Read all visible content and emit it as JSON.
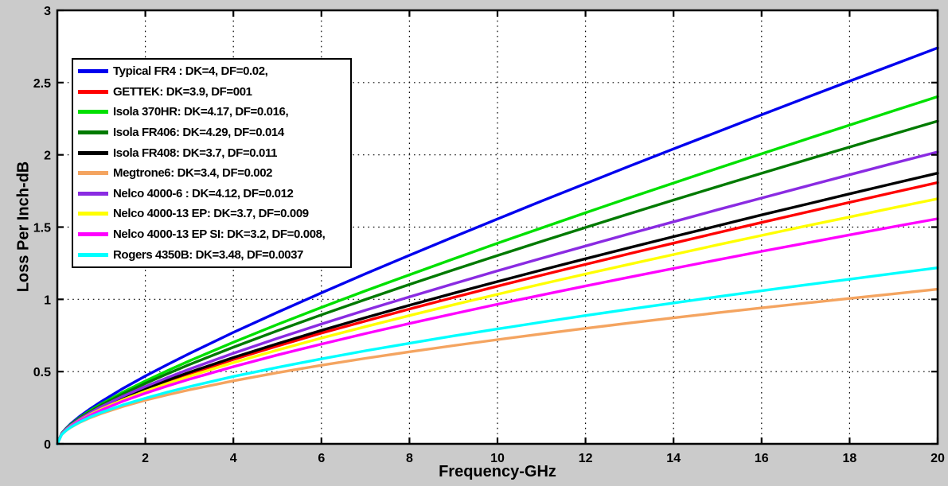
{
  "figure": {
    "background_color": "#CBCBCB",
    "plot_background_color": "#FFFFFF",
    "grid_style": "dotted",
    "axis_color": "#000000"
  },
  "chart_data": {
    "type": "line",
    "title": "",
    "xlabel": "Frequency-GHz",
    "ylabel": "Loss Per Inch-dB",
    "xlim": [
      0,
      20
    ],
    "ylim": [
      0,
      3
    ],
    "grid": "on",
    "legend_position": "top-left",
    "xticks": {
      "values": [
        2,
        4,
        6,
        8,
        10,
        12,
        14,
        16,
        18,
        20
      ],
      "labels": [
        "2",
        "4",
        "6",
        "8",
        "10",
        "12",
        "14",
        "16",
        "18",
        "20"
      ]
    },
    "yticks": {
      "values": [
        0,
        0.5,
        1,
        1.5,
        2,
        2.5,
        3
      ],
      "labels": [
        "0",
        "0.5",
        "1",
        "1.5",
        "2",
        "2.5",
        "3"
      ]
    },
    "x": [
      0,
      0.1,
      0.2,
      0.3,
      0.5,
      0.75,
      1,
      1.5,
      2,
      2.5,
      3,
      4,
      5,
      6,
      7,
      8,
      9,
      10,
      11,
      12,
      13,
      14,
      15,
      16,
      17,
      18,
      19,
      20
    ],
    "series": [
      {
        "name": "Typical FR4",
        "label": "Typical FR4 : DK=4, DF=0.02,",
        "color": "#0000EE",
        "values": [
          0,
          0.073,
          0.108,
          0.138,
          0.188,
          0.243,
          0.293,
          0.385,
          0.469,
          0.548,
          0.625,
          0.771,
          0.91,
          1.045,
          1.177,
          1.305,
          1.432,
          1.556,
          1.68,
          1.801,
          1.922,
          2.041,
          2.159,
          2.277,
          2.394,
          2.51,
          2.625,
          2.74
        ]
      },
      {
        "name": "GETTEK",
        "label": "GETTEK: DK=3.9, DF=001",
        "color": "#FF0000",
        "values": [
          0,
          0.068,
          0.099,
          0.124,
          0.165,
          0.208,
          0.247,
          0.315,
          0.375,
          0.432,
          0.485,
          0.584,
          0.677,
          0.766,
          0.85,
          0.933,
          1.013,
          1.091,
          1.167,
          1.242,
          1.316,
          1.389,
          1.461,
          1.532,
          1.602,
          1.671,
          1.74,
          1.808
        ]
      },
      {
        "name": "Isola 370HR",
        "label": "Isola 370HR: DK=4.17, DF=0.016,",
        "color": "#00E000",
        "values": [
          0,
          0.071,
          0.105,
          0.133,
          0.18,
          0.231,
          0.276,
          0.359,
          0.435,
          0.506,
          0.574,
          0.703,
          0.826,
          0.944,
          1.059,
          1.17,
          1.28,
          1.388,
          1.494,
          1.599,
          1.703,
          1.805,
          1.907,
          2.007,
          2.107,
          2.206,
          2.305,
          2.403
        ]
      },
      {
        "name": "Isola FR406",
        "label": "Isola FR406: DK=4.29, DF=0.014",
        "color": "#007A00",
        "values": [
          0,
          0.07,
          0.103,
          0.13,
          0.176,
          0.224,
          0.268,
          0.347,
          0.418,
          0.485,
          0.549,
          0.669,
          0.783,
          0.893,
          0.999,
          1.103,
          1.204,
          1.303,
          1.401,
          1.497,
          1.593,
          1.687,
          1.78,
          1.872,
          1.964,
          2.054,
          2.144,
          2.234
        ]
      },
      {
        "name": "Isola FR408",
        "label": "Isola FR408: DK=3.7, DF=0.011",
        "color": "#000000",
        "values": [
          0,
          0.068,
          0.1,
          0.125,
          0.167,
          0.211,
          0.25,
          0.32,
          0.382,
          0.44,
          0.495,
          0.597,
          0.693,
          0.785,
          0.873,
          0.959,
          1.042,
          1.123,
          1.203,
          1.281,
          1.358,
          1.434,
          1.509,
          1.584,
          1.657,
          1.73,
          1.802,
          1.873
        ]
      },
      {
        "name": "Megtrone6",
        "label": "Megtrone6: DK=3.4, DF=0.002",
        "color": "#F4A460",
        "values": [
          0,
          0.064,
          0.092,
          0.113,
          0.147,
          0.181,
          0.21,
          0.259,
          0.302,
          0.339,
          0.374,
          0.436,
          0.492,
          0.544,
          0.592,
          0.637,
          0.68,
          0.721,
          0.761,
          0.799,
          0.836,
          0.872,
          0.907,
          0.941,
          0.974,
          1.006,
          1.038,
          1.07
        ]
      },
      {
        "name": "Nelco 4000-6",
        "label": "Nelco 4000-6 : DK=4.12, DF=0.012",
        "color": "#8A2BE2",
        "values": [
          0,
          0.069,
          0.101,
          0.127,
          0.17,
          0.216,
          0.257,
          0.331,
          0.397,
          0.458,
          0.517,
          0.627,
          0.73,
          0.829,
          0.925,
          1.017,
          1.108,
          1.197,
          1.284,
          1.369,
          1.454,
          1.537,
          1.62,
          1.701,
          1.782,
          1.862,
          1.942,
          2.02
        ]
      },
      {
        "name": "Nelco 4000-13 EP",
        "label": "Nelco 4000-13 EP: DK=3.7, DF=0.009",
        "color": "#FFFF00",
        "values": [
          0,
          0.068,
          0.098,
          0.122,
          0.162,
          0.204,
          0.241,
          0.306,
          0.364,
          0.418,
          0.468,
          0.562,
          0.649,
          0.732,
          0.811,
          0.888,
          0.962,
          1.035,
          1.106,
          1.175,
          1.243,
          1.31,
          1.377,
          1.442,
          1.507,
          1.57,
          1.634,
          1.696
        ]
      },
      {
        "name": "Nelco 4000-13 EP SI",
        "label": "Nelco 4000-13 EP SI: DK=3.2, DF=0.008,",
        "color": "#FF00FF",
        "values": [
          0,
          0.067,
          0.097,
          0.12,
          0.159,
          0.199,
          0.234,
          0.296,
          0.35,
          0.4,
          0.447,
          0.534,
          0.615,
          0.69,
          0.763,
          0.833,
          0.9,
          0.966,
          1.03,
          1.092,
          1.154,
          1.214,
          1.273,
          1.332,
          1.389,
          1.446,
          1.503,
          1.558
        ]
      },
      {
        "name": "Rogers 4350B",
        "label": "Rogers 4350B: DK=3.48, DF=0.0037",
        "color": "#00FFFF",
        "values": [
          0,
          0.065,
          0.093,
          0.115,
          0.15,
          0.186,
          0.217,
          0.27,
          0.316,
          0.358,
          0.396,
          0.466,
          0.529,
          0.588,
          0.644,
          0.696,
          0.747,
          0.795,
          0.842,
          0.888,
          0.932,
          0.975,
          1.018,
          1.059,
          1.1,
          1.139,
          1.179,
          1.218
        ]
      }
    ]
  }
}
